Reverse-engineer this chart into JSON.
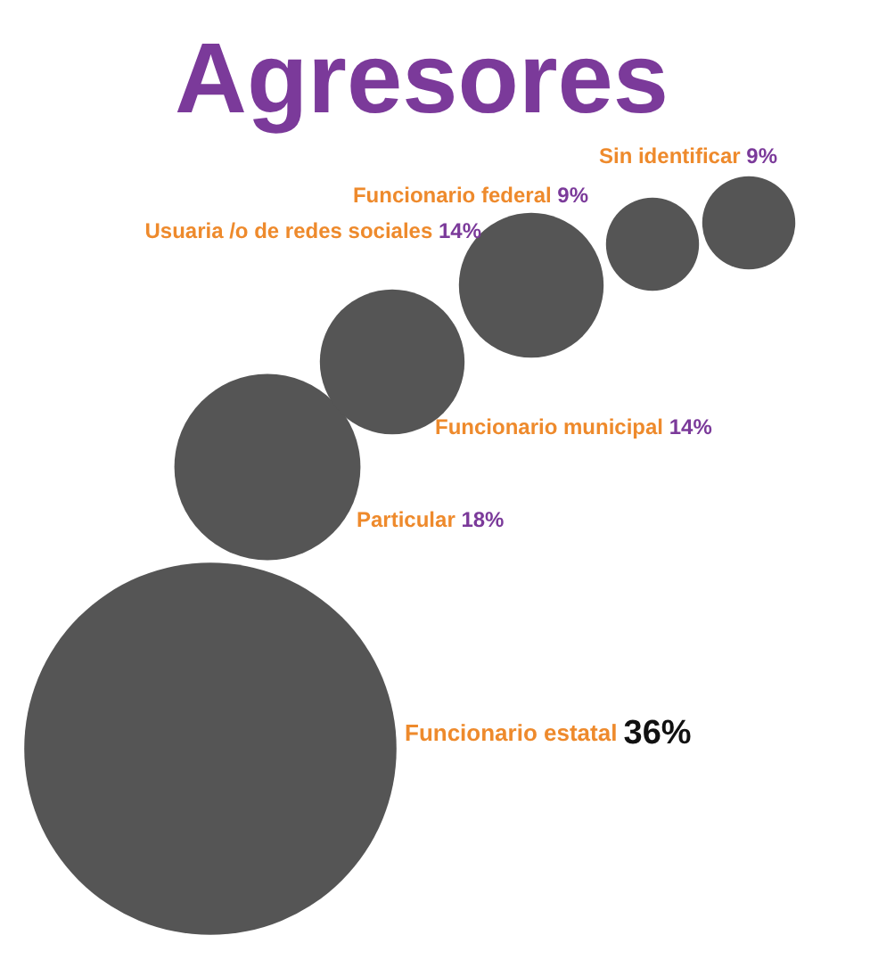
{
  "chart_data": {
    "type": "other",
    "title": "Agresores",
    "categories": [
      "Funcionario estatal",
      "Particular",
      "Funcionario municipal",
      "Usuaria /o de redes sociales",
      "Funcionario federal",
      "Sin identificar"
    ],
    "values": [
      36,
      18,
      14,
      14,
      9,
      9
    ],
    "value_labels": [
      "36%",
      "18%",
      "14%",
      "14%",
      "9%",
      "9%"
    ],
    "colors": [
      "#555555",
      "#555555",
      "#555555",
      "#555555",
      "#555555",
      "#555555"
    ]
  }
}
